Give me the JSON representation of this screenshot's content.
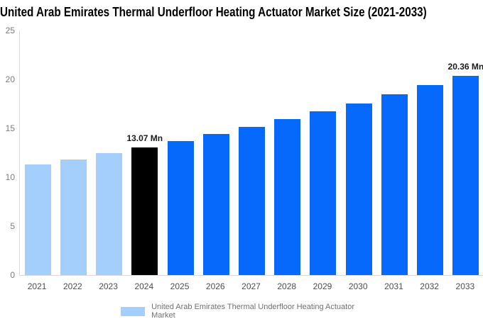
{
  "title": "United Arab Emirates Thermal Underfloor Heating Actuator Market Size (2021-2033)",
  "chart_data": {
    "type": "bar",
    "title": "United Arab Emirates Thermal Underfloor Heating Actuator Market Size (2021-2033)",
    "categories": [
      "2021",
      "2022",
      "2023",
      "2024",
      "2025",
      "2026",
      "2027",
      "2028",
      "2029",
      "2030",
      "2031",
      "2032",
      "2033"
    ],
    "series": [
      {
        "name": "United Arab Emirates Thermal Underfloor Heating Actuator Market",
        "values": [
          11.27,
          11.84,
          12.44,
          13.07,
          13.73,
          14.42,
          15.15,
          15.92,
          16.72,
          17.57,
          18.45,
          19.39,
          20.36
        ]
      }
    ],
    "unit": "Mn",
    "ylim": [
      0,
      25
    ],
    "yticks": [
      0,
      5,
      10,
      15,
      20,
      25
    ],
    "grid": false,
    "xlabel": "",
    "ylabel": "",
    "bar_colors": {
      "historical": "#a4cefb",
      "base_year": "#000000",
      "forecast": "#0769fb"
    },
    "bar_color_by_index": [
      "historical",
      "historical",
      "historical",
      "base_year",
      "forecast",
      "forecast",
      "forecast",
      "forecast",
      "forecast",
      "forecast",
      "forecast",
      "forecast",
      "forecast"
    ],
    "data_labels": [
      {
        "category": "2024",
        "text": "13.07 Mn"
      },
      {
        "category": "2033",
        "text": "20.36 Mn"
      }
    ],
    "axis_color": "#d9d9d9",
    "ytick_label_color": "#7a7a7a",
    "xtick_label_color": "#4d4d4d",
    "data_label_color": "#1a1a1a",
    "legend": {
      "position": "bottom-center",
      "swatch_color": "#a4cefb",
      "label": "United Arab Emirates Thermal Underfloor Heating Actuator Market",
      "label_color": "#707070"
    }
  }
}
